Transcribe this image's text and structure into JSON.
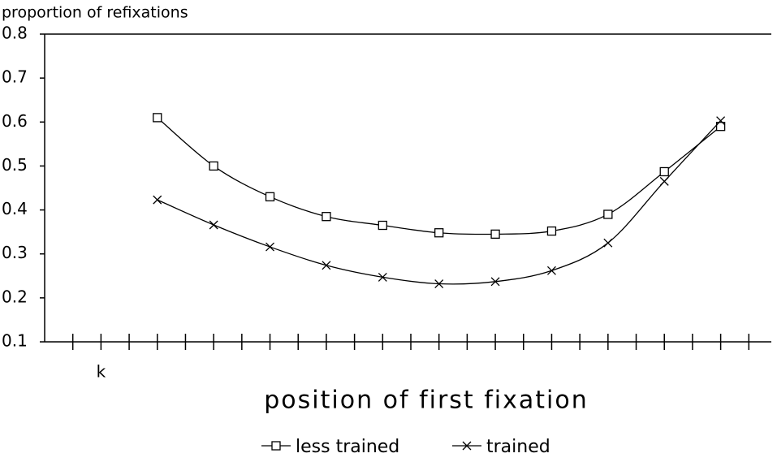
{
  "chart_data": {
    "type": "line",
    "y_axis_label": "proportion of refixations",
    "x_axis_label": "position of first fixation",
    "x_marker": {
      "value": 2,
      "label": "k"
    },
    "xlim": [
      0,
      26
    ],
    "xticks": [
      1,
      2,
      3,
      4,
      5,
      6,
      7,
      8,
      9,
      10,
      11,
      12,
      13,
      14,
      15,
      16,
      17,
      18,
      19,
      20,
      21,
      22,
      23,
      24,
      25
    ],
    "xtick_labels": false,
    "ylim": [
      0.1,
      0.8
    ],
    "yticks": [
      0.1,
      0.2,
      0.3,
      0.4,
      0.5,
      0.6,
      0.7,
      0.8
    ],
    "smooth": true,
    "series": [
      {
        "name": "less trained",
        "marker": "square",
        "color": "#000000",
        "x": [
          4,
          6,
          8,
          10,
          12,
          14,
          16,
          18,
          20,
          22,
          24
        ],
        "values": [
          0.61,
          0.5,
          0.43,
          0.385,
          0.365,
          0.348,
          0.345,
          0.352,
          0.39,
          0.487,
          0.59
        ]
      },
      {
        "name": "trained",
        "marker": "cross",
        "color": "#000000",
        "x": [
          4,
          6,
          8,
          10,
          12,
          14,
          16,
          18,
          20,
          22,
          24
        ],
        "values": [
          0.423,
          0.366,
          0.316,
          0.274,
          0.247,
          0.232,
          0.237,
          0.262,
          0.325,
          0.465,
          0.603
        ]
      }
    ]
  }
}
